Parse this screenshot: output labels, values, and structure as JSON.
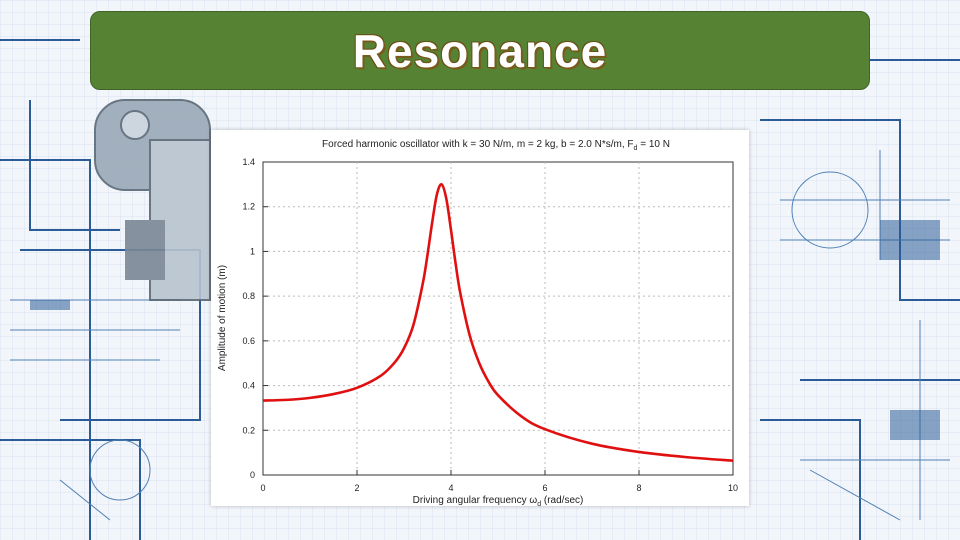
{
  "slide": {
    "title": "Resonance"
  },
  "chart_data": {
    "type": "line",
    "title": "Forced harmonic oscillator with k = 30 N/m, m = 2 kg, b = 2.0 N*s/m, F",
    "title_subscript": "d",
    "title_tail": " = 10 N",
    "xlabel": "Driving angular frequency ω",
    "xlabel_subscript": "d",
    "xlabel_tail": " (rad/sec)",
    "ylabel": "Amplitude of motion (m)",
    "xlim": [
      0,
      10
    ],
    "ylim": [
      0,
      1.4
    ],
    "x_ticks": [
      "0",
      "2",
      "4",
      "6",
      "8",
      "10"
    ],
    "y_ticks": [
      "0",
      "0.2",
      "0.4",
      "0.6",
      "0.8",
      "1",
      "1.2",
      "1.4"
    ],
    "grid": true,
    "series_color": "#e01010",
    "series": [
      {
        "x": [
          0,
          0.5,
          1,
          1.5,
          2,
          2.5,
          2.8,
          3,
          3.2,
          3.4,
          3.5,
          3.6,
          3.7,
          3.8,
          3.9,
          4,
          4.1,
          4.2,
          4.4,
          4.6,
          4.8,
          5,
          5.5,
          6,
          7,
          8,
          9,
          10
        ],
        "y": [
          0.333,
          0.336,
          0.345,
          0.362,
          0.39,
          0.443,
          0.503,
          0.567,
          0.671,
          0.857,
          0.985,
          1.13,
          1.255,
          1.3,
          1.236,
          1.096,
          0.943,
          0.811,
          0.623,
          0.501,
          0.417,
          0.357,
          0.262,
          0.205,
          0.14,
          0.103,
          0.08,
          0.064
        ]
      }
    ]
  }
}
